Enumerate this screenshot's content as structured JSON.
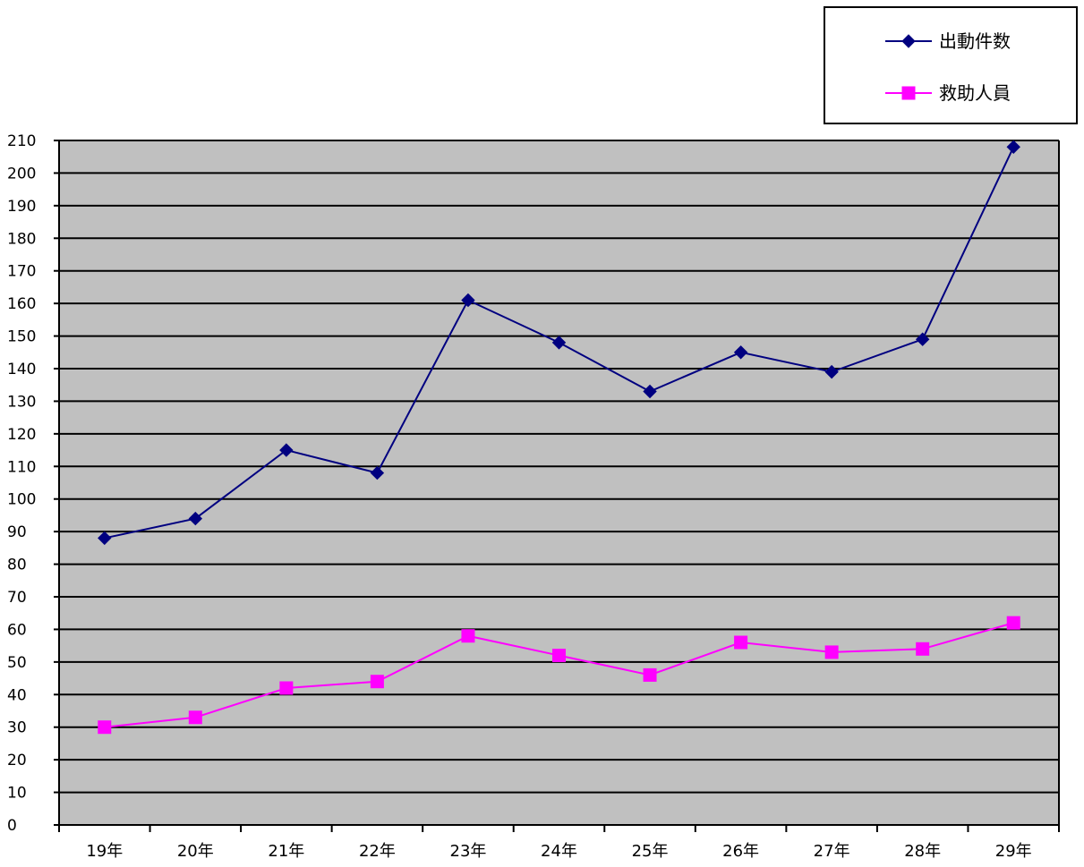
{
  "chart_data": {
    "type": "line",
    "title": "",
    "xlabel": "",
    "ylabel": "",
    "categories": [
      "19年",
      "20年",
      "21年",
      "22年",
      "23年",
      "24年",
      "25年",
      "26年",
      "27年",
      "28年",
      "29年"
    ],
    "ylim": [
      0,
      210
    ],
    "yticks": [
      0,
      10,
      20,
      30,
      40,
      50,
      60,
      70,
      80,
      90,
      100,
      110,
      120,
      130,
      140,
      150,
      160,
      170,
      180,
      190,
      200,
      210
    ],
    "grid": true,
    "legend": "top-right",
    "series": [
      {
        "name": "出動件数",
        "color": "#000080",
        "marker": "diamond",
        "values": [
          88,
          94,
          115,
          108,
          161,
          148,
          133,
          145,
          139,
          149,
          208
        ]
      },
      {
        "name": "救助人員",
        "color": "#ff00ff",
        "marker": "square",
        "values": [
          30,
          33,
          42,
          44,
          58,
          52,
          46,
          56,
          53,
          54,
          62
        ]
      }
    ],
    "colors": {
      "plot_background": "#c0c0c0",
      "gridline": "#000000"
    }
  }
}
